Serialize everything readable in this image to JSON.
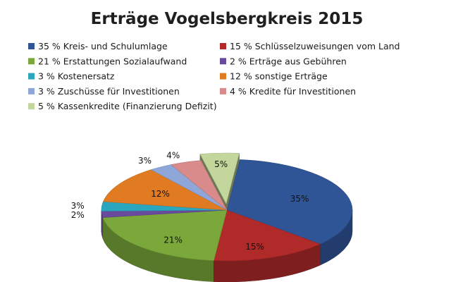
{
  "chart_data": {
    "type": "pie",
    "title": "Erträge Vogelsbergkreis 2015",
    "legend_placement": "top",
    "slices": [
      {
        "legend": "35 % Kreis- und Schulumlage",
        "value": 35,
        "label": "35%",
        "color": "#2f5597"
      },
      {
        "legend": "15 % Schlüsselzuweisungen vom Land",
        "value": 15,
        "label": "15%",
        "color": "#b02a2a"
      },
      {
        "legend": "21 % Erstattungen Sozialaufwand",
        "value": 21,
        "label": "21%",
        "color": "#7aa83a"
      },
      {
        "legend": "2 % Erträge aus Gebühren",
        "value": 2,
        "label": "2%",
        "color": "#6a4a9c"
      },
      {
        "legend": "3 % Kostenersatz",
        "value": 3,
        "label": "3%",
        "color": "#2aa6bf"
      },
      {
        "legend": "12 % sonstige Erträge",
        "value": 12,
        "label": "12%",
        "color": "#e07b22"
      },
      {
        "legend": "3 % Zuschüsse für Investitionen",
        "value": 3,
        "label": "3%",
        "color": "#8ea6d8"
      },
      {
        "legend": "4 % Kredite für Investitionen",
        "value": 4,
        "label": "4%",
        "color": "#d98a8a"
      },
      {
        "legend": "5 % Kassenkredite (Finanzierung Defizit)",
        "value": 5,
        "label": "5%",
        "color": "#c3d69b"
      }
    ]
  }
}
